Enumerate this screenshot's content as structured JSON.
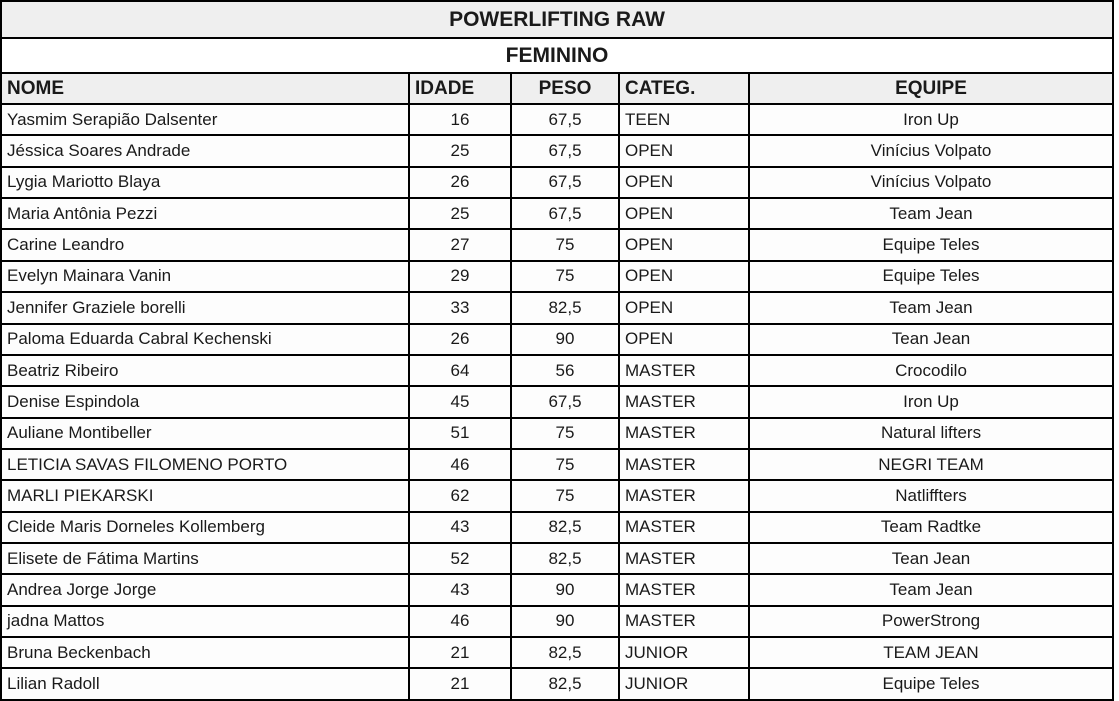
{
  "chart_data": {
    "type": "table",
    "title": "POWERLIFTING RAW",
    "subtitle": "FEMININO",
    "columns": [
      "NOME",
      "IDADE",
      "PESO",
      "CATEG.",
      "EQUIPE"
    ],
    "rows": [
      [
        "Yasmim Serapião Dalsenter",
        "16",
        "67,5",
        "TEEN",
        "Iron Up"
      ],
      [
        "Jéssica Soares Andrade",
        "25",
        "67,5",
        "OPEN",
        "Vinícius Volpato"
      ],
      [
        "Lygia Mariotto Blaya",
        "26",
        "67,5",
        "OPEN",
        "Vinícius Volpato"
      ],
      [
        "Maria Antônia Pezzi",
        "25",
        "67,5",
        "OPEN",
        "Team Jean"
      ],
      [
        "Carine Leandro",
        "27",
        "75",
        "OPEN",
        "Equipe Teles"
      ],
      [
        "Evelyn Mainara Vanin",
        "29",
        "75",
        "OPEN",
        "Equipe Teles"
      ],
      [
        "Jennifer Graziele borelli",
        "33",
        "82,5",
        "OPEN",
        "Team Jean"
      ],
      [
        "Paloma Eduarda Cabral Kechenski",
        "26",
        "90",
        "OPEN",
        "Tean Jean"
      ],
      [
        "Beatriz Ribeiro",
        "64",
        "56",
        "MASTER",
        "Crocodilo"
      ],
      [
        "Denise Espindola",
        "45",
        "67,5",
        "MASTER",
        "Iron Up"
      ],
      [
        "Auliane Montibeller",
        "51",
        "75",
        "MASTER",
        "Natural lifters"
      ],
      [
        "LETICIA SAVAS FILOMENO PORTO",
        "46",
        "75",
        "MASTER",
        "NEGRI TEAM"
      ],
      [
        "MARLI PIEKARSKI",
        "62",
        "75",
        "MASTER",
        "Natliffters"
      ],
      [
        "Cleide Maris Dorneles Kollemberg",
        "43",
        "82,5",
        "MASTER",
        "Team Radtke"
      ],
      [
        "Elisete de Fátima Martins",
        "52",
        "82,5",
        "MASTER",
        "Tean Jean"
      ],
      [
        "Andrea Jorge Jorge",
        "43",
        "90",
        "MASTER",
        "Team Jean"
      ],
      [
        "jadna Mattos",
        "46",
        "90",
        "MASTER",
        "PowerStrong"
      ],
      [
        "Bruna Beckenbach",
        "21",
        "82,5",
        "JUNIOR",
        "TEAM JEAN"
      ],
      [
        "Lilian Radoll",
        "21",
        "82,5",
        "JUNIOR",
        "Equipe Teles"
      ]
    ]
  },
  "colors": {
    "band_background": "#efefef",
    "row_background": "#fdfdfd",
    "border": "#000000",
    "text": "#1a1a1a"
  }
}
